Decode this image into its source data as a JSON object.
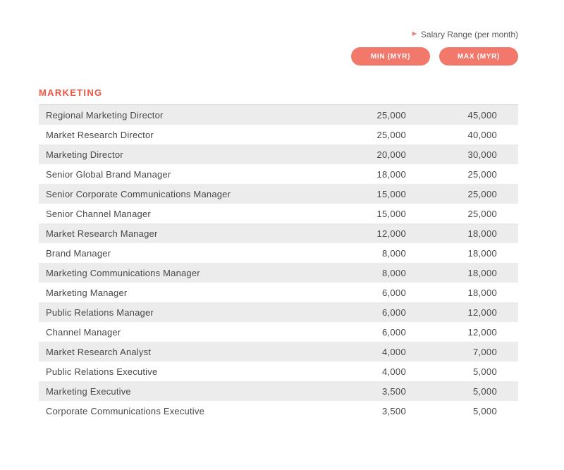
{
  "header": {
    "legend": "Salary Range (per month)",
    "min_label": "MIN (MYR)",
    "max_label": "MAX (MYR)"
  },
  "icons": {
    "triangle_right": "▶"
  },
  "section": {
    "title": "MARKETING"
  },
  "table": {
    "rows": [
      {
        "role": "Regional Marketing Director",
        "min": "25,000",
        "max": "45,000"
      },
      {
        "role": "Market Research Director",
        "min": "25,000",
        "max": "40,000"
      },
      {
        "role": "Marketing Director",
        "min": "20,000",
        "max": "30,000"
      },
      {
        "role": "Senior Global Brand Manager",
        "min": "18,000",
        "max": "25,000"
      },
      {
        "role": "Senior Corporate Communications Manager",
        "min": "15,000",
        "max": "25,000"
      },
      {
        "role": "Senior Channel Manager",
        "min": "15,000",
        "max": "25,000"
      },
      {
        "role": "Market Research Manager",
        "min": "12,000",
        "max": "18,000"
      },
      {
        "role": "Brand Manager",
        "min": "8,000",
        "max": "18,000"
      },
      {
        "role": "Marketing Communications Manager",
        "min": "8,000",
        "max": "18,000"
      },
      {
        "role": "Marketing Manager",
        "min": "6,000",
        "max": "18,000"
      },
      {
        "role": "Public Relations Manager",
        "min": "6,000",
        "max": "12,000"
      },
      {
        "role": "Channel Manager",
        "min": "6,000",
        "max": "12,000"
      },
      {
        "role": "Market Research Analyst",
        "min": "4,000",
        "max": "7,000"
      },
      {
        "role": "Public Relations Executive",
        "min": "4,000",
        "max": "5,000"
      },
      {
        "role": "Marketing Executive",
        "min": "3,500",
        "max": "5,000"
      },
      {
        "role": "Corporate Communications Executive",
        "min": "3,500",
        "max": "5,000"
      }
    ]
  },
  "colors": {
    "accent": "#f2786b",
    "section_title": "#f05542",
    "row_alt_bg": "#ececec",
    "body_text": "#474849",
    "legend_text": "#5a5b5d"
  }
}
